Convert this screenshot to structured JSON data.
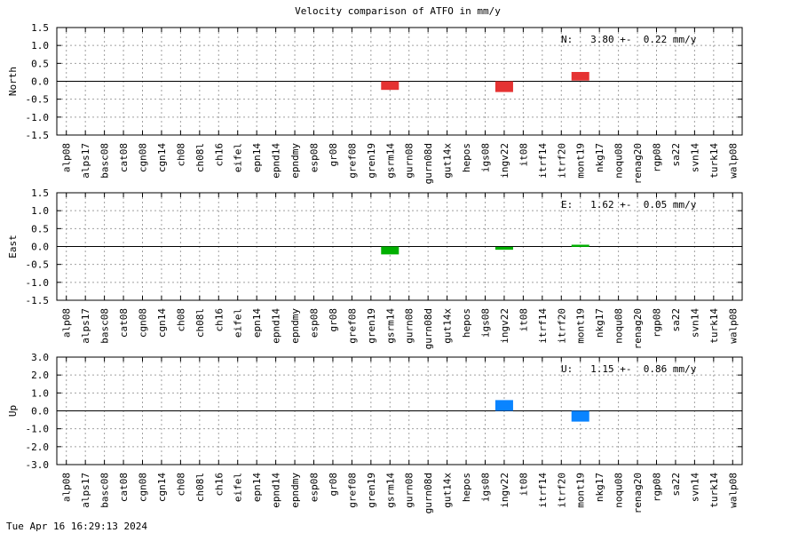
{
  "title": "Velocity comparison of ATFO in mm/y",
  "footer": "Tue Apr 16 16:29:13 2024",
  "chart_data": [
    {
      "type": "bar",
      "ylabel": "North",
      "ylim": [
        -1.5,
        1.5
      ],
      "yticks": [
        "1.5",
        "1.0",
        "0.5",
        "0.0",
        "-0.5",
        "-1.0",
        "-1.5"
      ],
      "annotation": "N:   3.80 +-  0.22 mm/y",
      "color": "#e53232",
      "grid": true,
      "categories": [
        "alp08",
        "alps17",
        "basc08",
        "cat08",
        "cgn08",
        "cgn14",
        "ch08",
        "ch08l",
        "ch16",
        "eifel",
        "epn14",
        "epnd14",
        "epndmy",
        "esp08",
        "gr08",
        "gref08",
        "gren19",
        "gsrm14",
        "gurn08",
        "gurn08d",
        "gut14x",
        "hepos",
        "igs08",
        "ingv22",
        "it08",
        "itrf14",
        "itrf20",
        "mont19",
        "nkg17",
        "noqu08",
        "renag20",
        "rgp08",
        "sa22",
        "svn14",
        "turk14",
        "walp08"
      ],
      "bars": [
        {
          "category": "gsrm14",
          "center": -0.12,
          "half_height": 0.12
        },
        {
          "category": "ingv22",
          "center": -0.15,
          "half_height": 0.15
        },
        {
          "category": "mont19",
          "center": 0.14,
          "half_height": 0.12
        }
      ]
    },
    {
      "type": "bar",
      "ylabel": "East",
      "ylim": [
        -1.5,
        1.5
      ],
      "yticks": [
        "1.5",
        "1.0",
        "0.5",
        "0.0",
        "-0.5",
        "-1.0",
        "-1.5"
      ],
      "annotation": "E:   1.62 +-  0.05 mm/y",
      "color": "#00b000",
      "grid": true,
      "categories": [
        "alp08",
        "alps17",
        "basc08",
        "cat08",
        "cgn08",
        "cgn14",
        "ch08",
        "ch08l",
        "ch16",
        "eifel",
        "epn14",
        "epnd14",
        "epndmy",
        "esp08",
        "gr08",
        "gref08",
        "gren19",
        "gsrm14",
        "gurn08",
        "gurn08d",
        "gut14x",
        "hepos",
        "igs08",
        "ingv22",
        "it08",
        "itrf14",
        "itrf20",
        "mont19",
        "nkg17",
        "noqu08",
        "renag20",
        "rgp08",
        "sa22",
        "svn14",
        "turk14",
        "walp08"
      ],
      "bars": [
        {
          "category": "gsrm14",
          "center": -0.11,
          "half_height": 0.11
        },
        {
          "category": "ingv22",
          "center": -0.05,
          "half_height": 0.04
        },
        {
          "category": "mont19",
          "center": 0.02,
          "half_height": 0.03
        }
      ]
    },
    {
      "type": "bar",
      "ylabel": "Up",
      "ylim": [
        -3.0,
        3.0
      ],
      "yticks": [
        "3.0",
        "2.0",
        "1.0",
        "0.0",
        "-1.0",
        "-2.0",
        "-3.0"
      ],
      "annotation": "U:   1.15 +-  0.86 mm/y",
      "color": "#0a84ff",
      "grid": true,
      "categories": [
        "alp08",
        "alps17",
        "basc08",
        "cat08",
        "cgn08",
        "cgn14",
        "ch08",
        "ch08l",
        "ch16",
        "eifel",
        "epn14",
        "epnd14",
        "epndmy",
        "esp08",
        "gr08",
        "gref08",
        "gren19",
        "gsrm14",
        "gurn08",
        "gurn08d",
        "gut14x",
        "hepos",
        "igs08",
        "ingv22",
        "it08",
        "itrf14",
        "itrf20",
        "mont19",
        "nkg17",
        "noqu08",
        "renag20",
        "rgp08",
        "sa22",
        "svn14",
        "turk14",
        "walp08"
      ],
      "bars": [
        {
          "category": "ingv22",
          "center": 0.3,
          "half_height": 0.3
        },
        {
          "category": "mont19",
          "center": -0.3,
          "half_height": 0.3
        }
      ]
    }
  ]
}
